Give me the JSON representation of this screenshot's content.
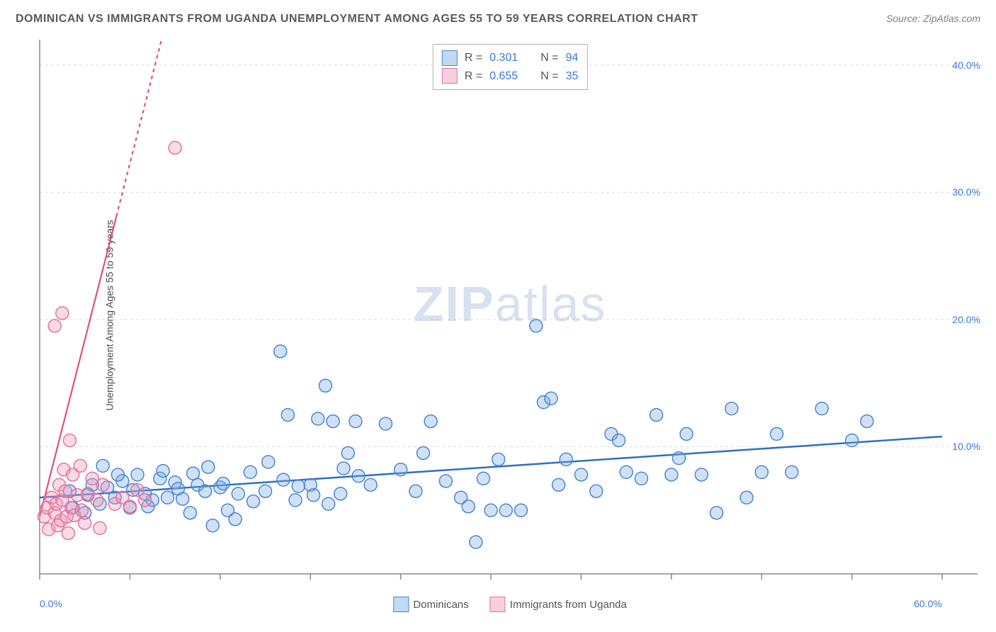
{
  "title": "DOMINICAN VS IMMIGRANTS FROM UGANDA UNEMPLOYMENT AMONG AGES 55 TO 59 YEARS CORRELATION CHART",
  "source": "Source: ZipAtlas.com",
  "watermark": {
    "zip": "ZIP",
    "atlas": "atlas"
  },
  "y_axis_label": "Unemployment Among Ages 55 to 59 years",
  "chart": {
    "type": "scatter",
    "background_color": "#ffffff",
    "grid_color": "#dcdcdc",
    "axis_color": "#888888",
    "xlim": [
      0,
      60
    ],
    "ylim": [
      0,
      42
    ],
    "xticks": [
      0,
      6,
      12,
      18,
      24,
      30,
      36,
      42,
      48,
      54,
      60
    ],
    "yticks_grid": [
      10,
      20,
      30,
      40
    ],
    "x_tick_labels": [
      {
        "value": 0,
        "text": "0.0%",
        "color": "#3b78d8"
      },
      {
        "value": 60,
        "text": "60.0%",
        "color": "#3b78d8"
      }
    ],
    "y_tick_labels": [
      {
        "value": 10,
        "text": "10.0%",
        "color": "#3b78d8"
      },
      {
        "value": 20,
        "text": "20.0%",
        "color": "#3b78d8"
      },
      {
        "value": 30,
        "text": "30.0%",
        "color": "#3b78d8"
      },
      {
        "value": 40,
        "text": "40.0%",
        "color": "#3b78d8"
      }
    ],
    "marker_radius": 9,
    "marker_stroke_width": 1.5,
    "series": [
      {
        "name": "Dominicans",
        "fill": "rgba(120,170,230,0.35)",
        "stroke": "#4a86d4",
        "R_label": "R =",
        "R": "0.301",
        "N_label": "N =",
        "N": "94",
        "trend": {
          "x1": 0,
          "y1": 6.0,
          "x2": 60,
          "y2": 10.8,
          "dash": false,
          "color": "#2f6fc4",
          "width": 2.5
        },
        "points": [
          [
            2,
            6.5
          ],
          [
            3,
            4.8
          ],
          [
            3.5,
            7
          ],
          [
            4,
            5.5
          ],
          [
            4.5,
            6.8
          ],
          [
            5,
            6
          ],
          [
            5.5,
            7.3
          ],
          [
            6,
            5.2
          ],
          [
            6.5,
            7.8
          ],
          [
            7,
            6.3
          ],
          [
            7.5,
            5.8
          ],
          [
            8,
            7.5
          ],
          [
            8.5,
            6
          ],
          [
            9,
            7.2
          ],
          [
            9.5,
            5.9
          ],
          [
            10,
            4.8
          ],
          [
            10.5,
            7
          ],
          [
            11,
            6.5
          ],
          [
            11.5,
            3.8
          ],
          [
            12,
            6.8
          ],
          [
            12.5,
            5
          ],
          [
            13,
            4.3
          ],
          [
            14,
            8
          ],
          [
            15,
            6.5
          ],
          [
            16,
            17.5
          ],
          [
            16.5,
            12.5
          ],
          [
            17,
            5.8
          ],
          [
            18,
            7
          ],
          [
            18.5,
            12.2
          ],
          [
            19,
            14.8
          ],
          [
            19.5,
            12
          ],
          [
            20,
            6.3
          ],
          [
            20.5,
            9.5
          ],
          [
            21,
            12
          ],
          [
            22,
            7
          ],
          [
            23,
            11.8
          ],
          [
            24,
            8.2
          ],
          [
            25,
            6.5
          ],
          [
            25.5,
            9.5
          ],
          [
            26,
            12
          ],
          [
            27,
            7.3
          ],
          [
            28,
            6
          ],
          [
            28.5,
            5.3
          ],
          [
            29,
            2.5
          ],
          [
            29.5,
            7.5
          ],
          [
            30,
            5
          ],
          [
            30.5,
            9
          ],
          [
            31,
            5
          ],
          [
            32,
            5
          ],
          [
            33,
            19.5
          ],
          [
            33.5,
            13.5
          ],
          [
            34,
            13.8
          ],
          [
            35,
            9
          ],
          [
            36,
            7.8
          ],
          [
            37,
            6.5
          ],
          [
            38,
            11
          ],
          [
            39,
            8
          ],
          [
            40,
            7.5
          ],
          [
            41,
            12.5
          ],
          [
            42,
            7.8
          ],
          [
            43,
            11
          ],
          [
            44,
            7.8
          ],
          [
            45,
            4.8
          ],
          [
            46,
            13
          ],
          [
            47,
            6
          ],
          [
            48,
            8
          ],
          [
            49,
            11
          ],
          [
            50,
            8
          ],
          [
            52,
            13
          ],
          [
            54,
            10.5
          ],
          [
            55,
            12
          ],
          [
            2.2,
            5.2
          ],
          [
            3.2,
            6.2
          ],
          [
            4.2,
            8.5
          ],
          [
            5.2,
            7.8
          ],
          [
            6.2,
            6.6
          ],
          [
            7.2,
            5.3
          ],
          [
            8.2,
            8.1
          ],
          [
            9.2,
            6.7
          ],
          [
            10.2,
            7.9
          ],
          [
            11.2,
            8.4
          ],
          [
            12.2,
            7.1
          ],
          [
            13.2,
            6.3
          ],
          [
            14.2,
            5.7
          ],
          [
            15.2,
            8.8
          ],
          [
            16.2,
            7.4
          ],
          [
            17.2,
            6.9
          ],
          [
            18.2,
            6.2
          ],
          [
            19.2,
            5.5
          ],
          [
            20.2,
            8.3
          ],
          [
            21.2,
            7.7
          ],
          [
            34.5,
            7
          ],
          [
            38.5,
            10.5
          ],
          [
            42.5,
            9.1
          ]
        ]
      },
      {
        "name": "Immigrants from Uganda",
        "fill": "rgba(240,150,180,0.35)",
        "stroke": "#e57399",
        "R_label": "R =",
        "R": "0.655",
        "N_label": "N =",
        "N": "35",
        "trend": {
          "x1": 0,
          "y1": 4.5,
          "x2": 8.1,
          "y2": 42,
          "dash_after_x": 5.1,
          "color": "#e04f80",
          "width": 2.2
        },
        "points": [
          [
            0.3,
            4.5
          ],
          [
            0.5,
            5.2
          ],
          [
            0.6,
            3.5
          ],
          [
            0.8,
            6
          ],
          [
            1,
            4.8
          ],
          [
            1.1,
            5.5
          ],
          [
            1.2,
            3.8
          ],
          [
            1.3,
            7
          ],
          [
            1.4,
            4.2
          ],
          [
            1.5,
            5.8
          ],
          [
            1.6,
            8.2
          ],
          [
            1.7,
            6.5
          ],
          [
            1.8,
            4.5
          ],
          [
            1.9,
            3.2
          ],
          [
            2,
            10.5
          ],
          [
            2.1,
            5.2
          ],
          [
            2.2,
            7.8
          ],
          [
            2.3,
            4.6
          ],
          [
            2.5,
            6.2
          ],
          [
            2.7,
            8.5
          ],
          [
            2.8,
            5
          ],
          [
            3,
            4
          ],
          [
            3.2,
            6.3
          ],
          [
            3.5,
            7.5
          ],
          [
            3.8,
            5.8
          ],
          [
            4,
            3.6
          ],
          [
            4.2,
            7
          ],
          [
            1,
            19.5
          ],
          [
            1.5,
            20.5
          ],
          [
            5,
            5.5
          ],
          [
            5.5,
            6
          ],
          [
            6,
            5.3
          ],
          [
            6.5,
            6.6
          ],
          [
            7,
            5.8
          ],
          [
            9,
            33.5
          ]
        ]
      }
    ]
  },
  "corr_legend_value_color": "#3b78d8",
  "legend_swatch": {
    "dominicans": {
      "fill": "rgba(120,170,230,0.45)",
      "stroke": "#4a86d4"
    },
    "uganda": {
      "fill": "rgba(240,150,180,0.45)",
      "stroke": "#e57399"
    }
  }
}
